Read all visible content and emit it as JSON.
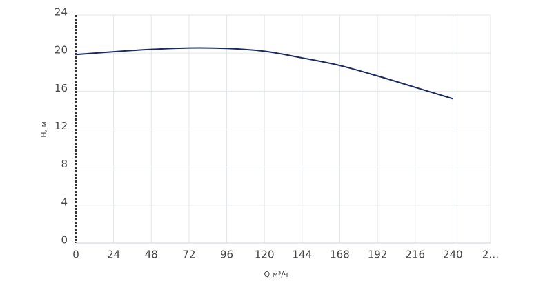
{
  "chart_data": {
    "type": "line",
    "x_label": "Q м³/ч",
    "y_label": "H, м",
    "x": [
      0,
      24,
      48,
      72,
      96,
      120,
      144,
      168,
      192,
      216,
      240
    ],
    "series": [
      {
        "name": "H",
        "color": "#1a2a5e",
        "values": [
          19.85,
          20.15,
          20.4,
          20.55,
          20.5,
          20.2,
          19.5,
          18.7,
          17.6,
          16.4,
          15.2
        ]
      }
    ],
    "xlim": [
      0,
      264
    ],
    "ylim": [
      0,
      24
    ],
    "xticks": [
      0,
      24,
      48,
      72,
      96,
      120,
      144,
      168,
      192,
      216,
      240,
      {
        "value": 264,
        "label": "2…"
      }
    ],
    "yticks": [
      0,
      4,
      8,
      12,
      16,
      20,
      24
    ],
    "grid": true
  }
}
